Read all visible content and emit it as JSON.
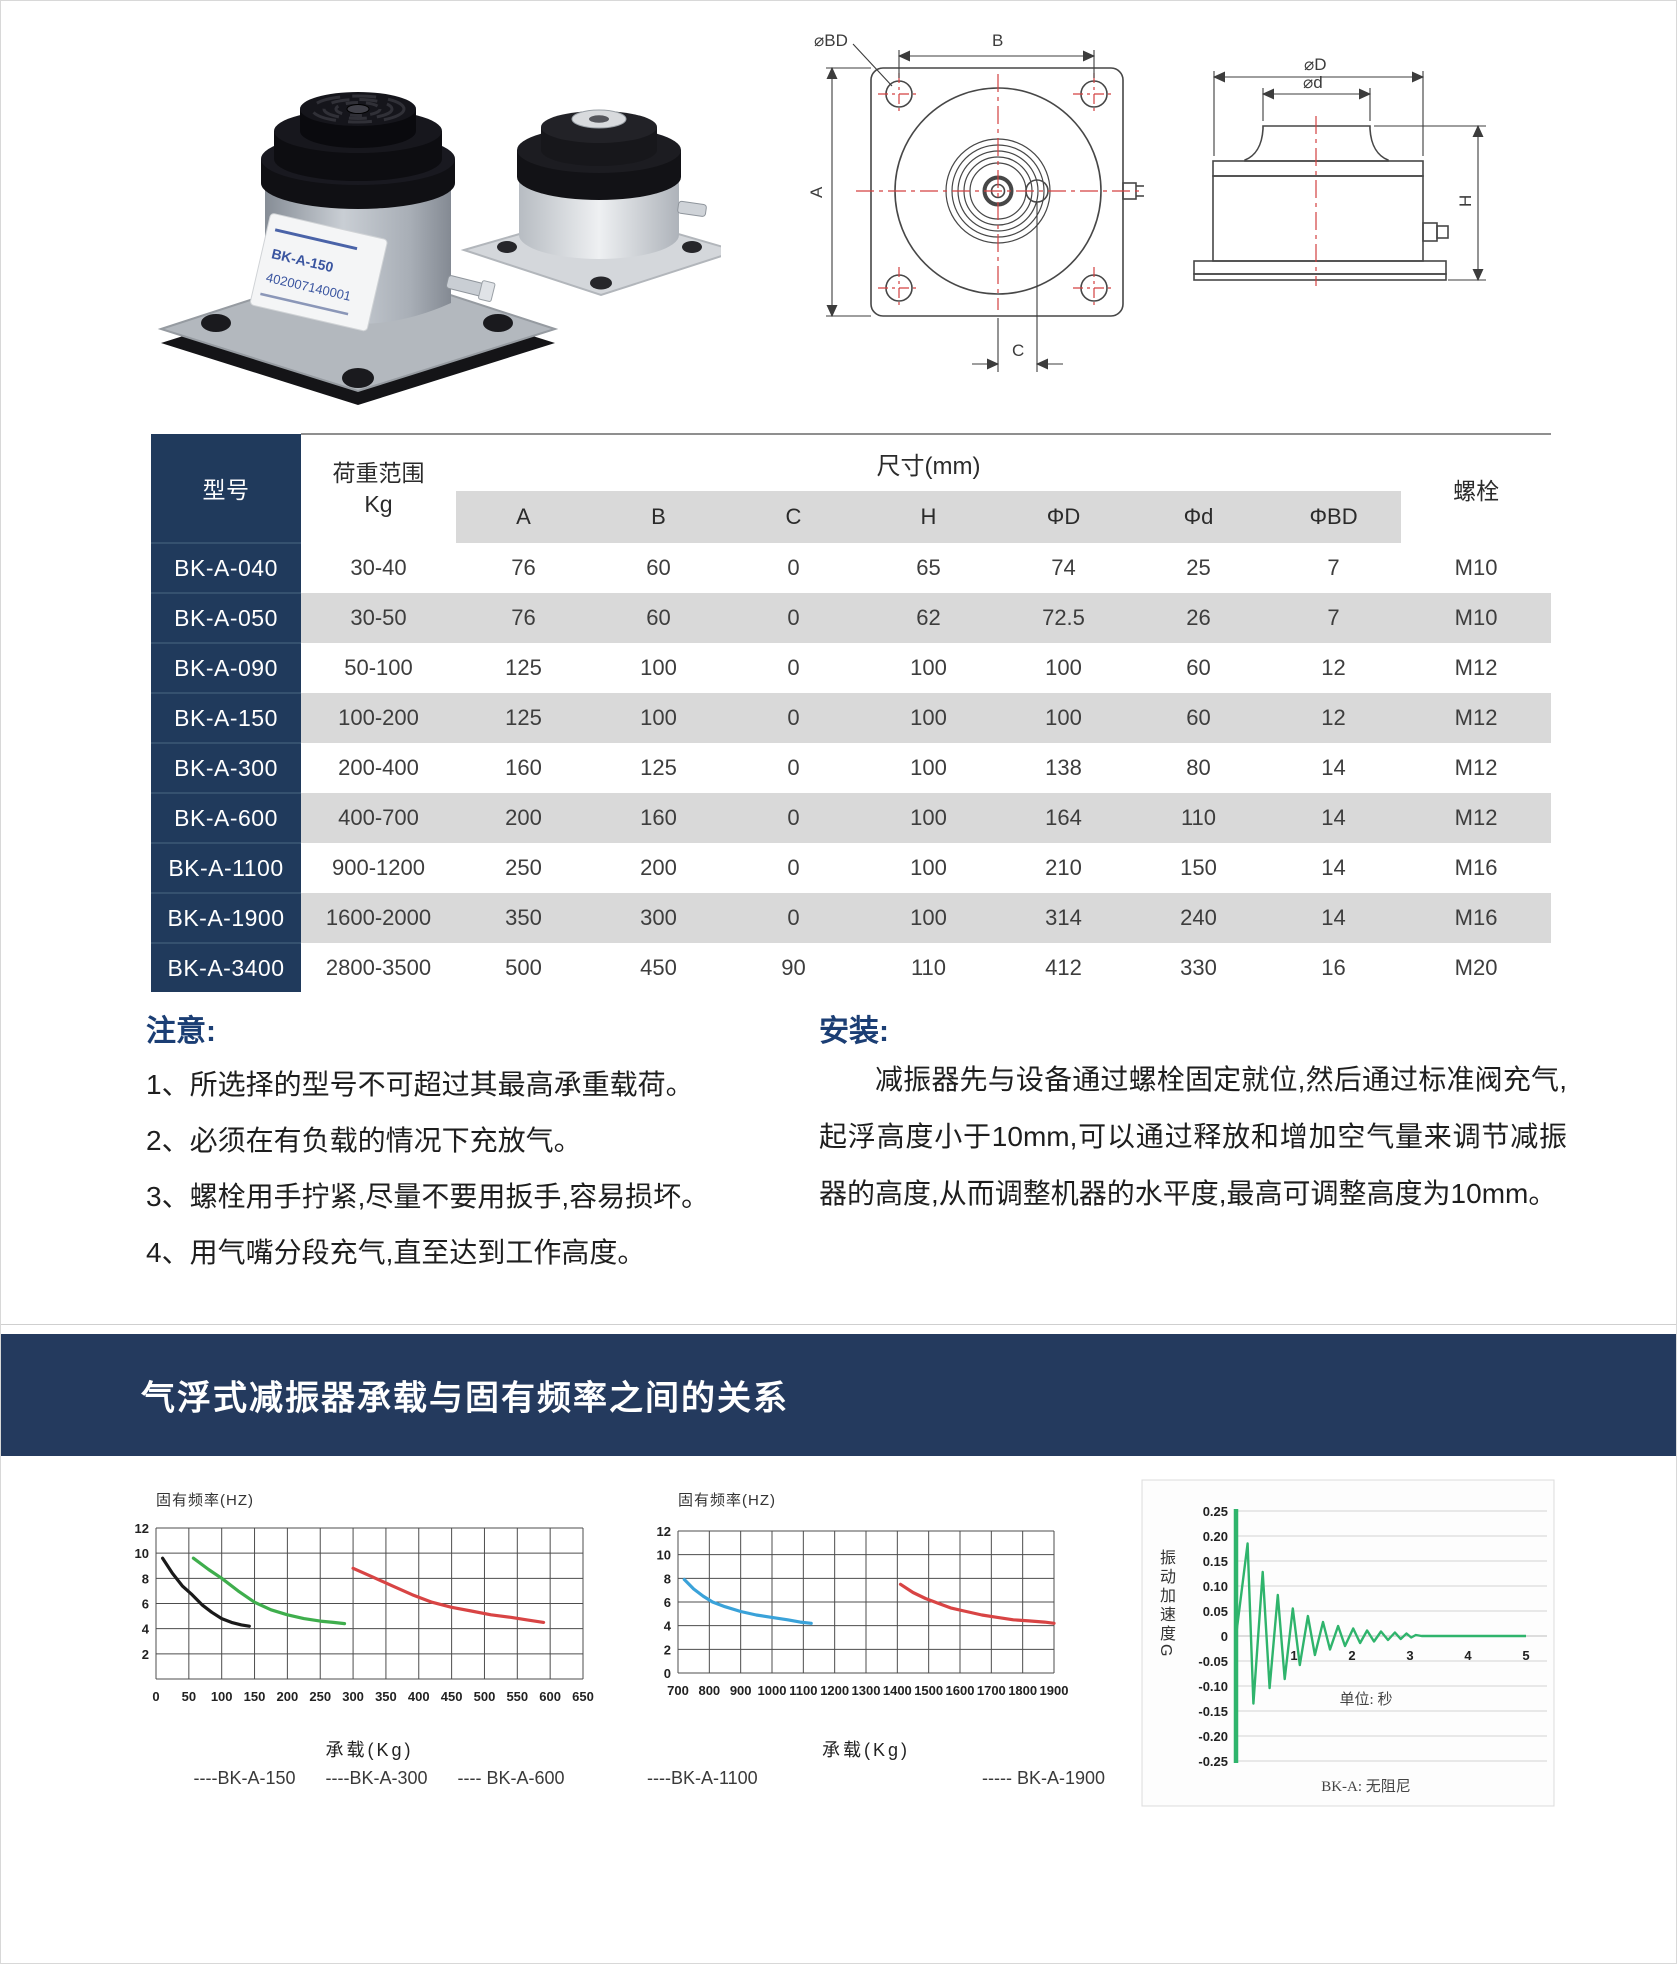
{
  "photo": {
    "label_model": "BK-A-150",
    "label_serial": "402007140001"
  },
  "drawings": {
    "top_view": {
      "dim_bd": "⌀BD",
      "dim_b": "B",
      "dim_a": "A",
      "dim_c": "C"
    },
    "side_view": {
      "dim_D": "⌀D",
      "dim_d": "⌀d",
      "dim_h": "H"
    }
  },
  "table": {
    "col_model": "型号",
    "col_load": "荷重范围",
    "col_load_unit": "Kg",
    "col_size": "尺寸(mm)",
    "col_bolt": "螺栓",
    "sub_cols": [
      "A",
      "B",
      "C",
      "H",
      "ΦD",
      "Φd",
      "ΦBD"
    ],
    "rows": [
      {
        "model": "BK-A-040",
        "load": "30-40",
        "dims": [
          "76",
          "60",
          "0",
          "65",
          "74",
          "25",
          "7"
        ],
        "bolt": "M10"
      },
      {
        "model": "BK-A-050",
        "load": "30-50",
        "dims": [
          "76",
          "60",
          "0",
          "62",
          "72.5",
          "26",
          "7"
        ],
        "bolt": "M10"
      },
      {
        "model": "BK-A-090",
        "load": "50-100",
        "dims": [
          "125",
          "100",
          "0",
          "100",
          "100",
          "60",
          "12"
        ],
        "bolt": "M12"
      },
      {
        "model": "BK-A-150",
        "load": "100-200",
        "dims": [
          "125",
          "100",
          "0",
          "100",
          "100",
          "60",
          "12"
        ],
        "bolt": "M12"
      },
      {
        "model": "BK-A-300",
        "load": "200-400",
        "dims": [
          "160",
          "125",
          "0",
          "100",
          "138",
          "80",
          "14"
        ],
        "bolt": "M12"
      },
      {
        "model": "BK-A-600",
        "load": "400-700",
        "dims": [
          "200",
          "160",
          "0",
          "100",
          "164",
          "110",
          "14"
        ],
        "bolt": "M12"
      },
      {
        "model": "BK-A-1100",
        "load": "900-1200",
        "dims": [
          "250",
          "200",
          "0",
          "100",
          "210",
          "150",
          "14"
        ],
        "bolt": "M16"
      },
      {
        "model": "BK-A-1900",
        "load": "1600-2000",
        "dims": [
          "350",
          "300",
          "0",
          "100",
          "314",
          "240",
          "14"
        ],
        "bolt": "M16"
      },
      {
        "model": "BK-A-3400",
        "load": "2800-3500",
        "dims": [
          "500",
          "450",
          "90",
          "110",
          "412",
          "330",
          "16"
        ],
        "bolt": "M20"
      }
    ]
  },
  "notice": {
    "title": "注意:",
    "items": [
      "1、所选择的型号不可超过其最高承重载荷。",
      "2、必须在有负载的情况下充放气。",
      "3、螺栓用手拧紧,尽量不要用扳手,容易损坏。",
      "4、用气嘴分段充气,直至达到工作高度。"
    ]
  },
  "install": {
    "title": "安装:",
    "body": "减振器先与设备通过螺栓固定就位,然后通过标准阀充气,起浮高度小于10mm,可以通过释放和增加空气量来调节减振器的高度,从而调整机器的水平度,最高可调整高度为10mm。"
  },
  "banner": {
    "title": "气浮式减振器承载与固有频率之间的关系",
    "bg": "#243a5e"
  },
  "chart_data": [
    {
      "type": "line",
      "title": "固有频率(HZ)",
      "xlabel": "承载(Kg)",
      "xlim": [
        0,
        650
      ],
      "ylim": [
        0,
        12
      ],
      "x_ticks": [
        0,
        50,
        100,
        150,
        200,
        250,
        300,
        350,
        400,
        450,
        500,
        550,
        600,
        650
      ],
      "y_ticks_labeled": [
        12,
        10,
        8,
        6,
        4,
        2
      ],
      "grid": true,
      "legend": [
        {
          "label": "----BK-A-150"
        },
        {
          "label": "----BK-A-300"
        },
        {
          "label": "---- BK-A-600"
        }
      ],
      "series": [
        {
          "name": "BK-A-150",
          "color": "#1a1a1a",
          "points": [
            [
              10,
              9.6
            ],
            [
              25,
              8.4
            ],
            [
              40,
              7.4
            ],
            [
              55,
              6.7
            ],
            [
              70,
              5.9
            ],
            [
              85,
              5.3
            ],
            [
              100,
              4.8
            ],
            [
              115,
              4.5
            ],
            [
              130,
              4.3
            ],
            [
              142,
              4.2
            ]
          ]
        },
        {
          "name": "BK-A-300",
          "color": "#3fae4d",
          "points": [
            [
              57,
              9.6
            ],
            [
              80,
              8.7
            ],
            [
              100,
              8.0
            ],
            [
              125,
              7.0
            ],
            [
              150,
              6.1
            ],
            [
              175,
              5.5
            ],
            [
              200,
              5.1
            ],
            [
              225,
              4.8
            ],
            [
              250,
              4.6
            ],
            [
              270,
              4.5
            ],
            [
              287,
              4.4
            ]
          ]
        },
        {
          "name": "BK-A-600",
          "color": "#d84444",
          "points": [
            [
              300,
              8.8
            ],
            [
              330,
              8.1
            ],
            [
              360,
              7.4
            ],
            [
              390,
              6.7
            ],
            [
              420,
              6.1
            ],
            [
              450,
              5.7
            ],
            [
              480,
              5.4
            ],
            [
              510,
              5.1
            ],
            [
              540,
              4.9
            ],
            [
              565,
              4.7
            ],
            [
              590,
              4.5
            ]
          ]
        }
      ]
    },
    {
      "type": "line",
      "title": "固有频率(HZ)",
      "xlabel": "承载(Kg)",
      "xlim": [
        700,
        1900
      ],
      "ylim": [
        0,
        12
      ],
      "x_ticks": [
        700,
        800,
        900,
        1000,
        1100,
        1200,
        1300,
        1400,
        1500,
        1600,
        1700,
        1800,
        1900
      ],
      "y_ticks_labeled": [
        12,
        10,
        8,
        6,
        4,
        2,
        0
      ],
      "grid": true,
      "legend": [
        {
          "label": "----BK-A-1100"
        },
        {
          "label": "----- BK-A-1900"
        }
      ],
      "series": [
        {
          "name": "BK-A-1100",
          "color": "#3aa2d9",
          "points": [
            [
              720,
              7.9
            ],
            [
              750,
              7.1
            ],
            [
              780,
              6.5
            ],
            [
              810,
              6.0
            ],
            [
              850,
              5.6
            ],
            [
              900,
              5.2
            ],
            [
              950,
              4.9
            ],
            [
              1000,
              4.7
            ],
            [
              1050,
              4.5
            ],
            [
              1090,
              4.3
            ],
            [
              1125,
              4.2
            ]
          ]
        },
        {
          "name": "BK-A-1900",
          "color": "#d84444",
          "points": [
            [
              1410,
              7.5
            ],
            [
              1450,
              6.8
            ],
            [
              1490,
              6.3
            ],
            [
              1530,
              5.9
            ],
            [
              1570,
              5.5
            ],
            [
              1620,
              5.2
            ],
            [
              1670,
              4.9
            ],
            [
              1720,
              4.7
            ],
            [
              1770,
              4.5
            ],
            [
              1820,
              4.4
            ],
            [
              1870,
              4.3
            ],
            [
              1900,
              4.2
            ]
          ]
        }
      ]
    },
    {
      "type": "line",
      "title": "",
      "ylabel": "振动加速度G",
      "unit_label": "单位: 秒",
      "caption": "BK-A: 无阻尼",
      "xlim": [
        0,
        5
      ],
      "ylim": [
        -0.25,
        0.25
      ],
      "x_ticks": [
        1,
        2,
        3,
        4,
        5
      ],
      "y_ticks": [
        "0.25",
        "0.20",
        "0.15",
        "0.10",
        "0.05",
        "0",
        "-0.05",
        "-0.10",
        "-0.15",
        "-0.20",
        "-0.25"
      ],
      "grid": true,
      "series": [
        {
          "name": "BK-A",
          "color": "#2fb46c",
          "points": [
            [
              0,
              0
            ],
            [
              0.2,
              0.185
            ],
            [
              0.3,
              -0.135
            ],
            [
              0.46,
              0.128
            ],
            [
              0.58,
              -0.104
            ],
            [
              0.72,
              0.082
            ],
            [
              0.84,
              -0.086
            ],
            [
              0.98,
              0.055
            ],
            [
              1.1,
              -0.058
            ],
            [
              1.24,
              0.04
            ],
            [
              1.36,
              -0.038
            ],
            [
              1.5,
              0.028
            ],
            [
              1.62,
              -0.027
            ],
            [
              1.76,
              0.02
            ],
            [
              1.88,
              -0.02
            ],
            [
              2.02,
              0.015
            ],
            [
              2.14,
              -0.014
            ],
            [
              2.26,
              0.011
            ],
            [
              2.38,
              -0.011
            ],
            [
              2.5,
              0.009
            ],
            [
              2.62,
              -0.008
            ],
            [
              2.74,
              0.007
            ],
            [
              2.84,
              -0.006
            ],
            [
              2.94,
              0.005
            ],
            [
              3.02,
              -0.003
            ],
            [
              3.1,
              0.002
            ],
            [
              3.2,
              0
            ],
            [
              5,
              0
            ]
          ]
        }
      ]
    }
  ]
}
